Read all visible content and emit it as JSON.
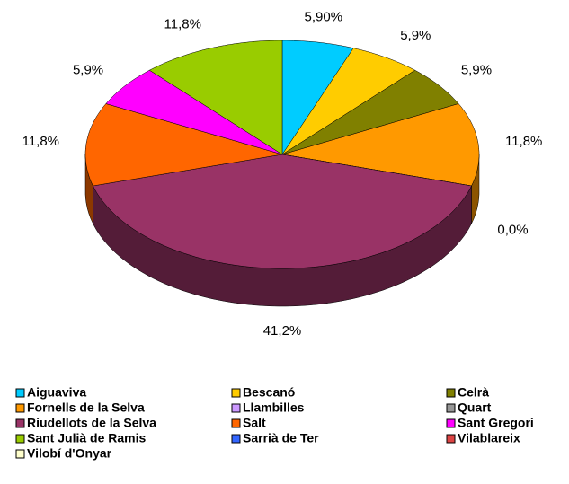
{
  "chart_data": {
    "type": "pie",
    "categories": [
      "Aiguaviva",
      "Bescanó",
      "Celrà",
      "Fornells de la Selva",
      "Llambilles",
      "Quart",
      "Riudellots de la Selva",
      "Salt",
      "Sant Gregori",
      "Sant Julià de Ramis",
      "Sarrià de Ter",
      "Vilablareix",
      "Vilobí d'Onyar"
    ],
    "values": [
      5.9,
      5.9,
      5.9,
      11.8,
      0,
      null,
      41.2,
      11.8,
      5.9,
      11.8,
      null,
      null,
      null
    ],
    "value_labels": [
      "5,90%",
      "5,9%",
      "5,9%",
      "11,8%",
      "0,0%",
      null,
      "41,2%",
      "11,8%",
      "5,9%",
      "11,8%",
      null,
      null,
      null
    ],
    "colors": [
      "#00ccff",
      "#ffcc00",
      "#808000",
      "#ff9900",
      "#cc99ff",
      "#969696",
      "#993366",
      "#ff6600",
      "#ff00ff",
      "#99cc00",
      "#3366ff",
      "#dd4444",
      "#ffffcc"
    ],
    "legend": "bottom"
  }
}
